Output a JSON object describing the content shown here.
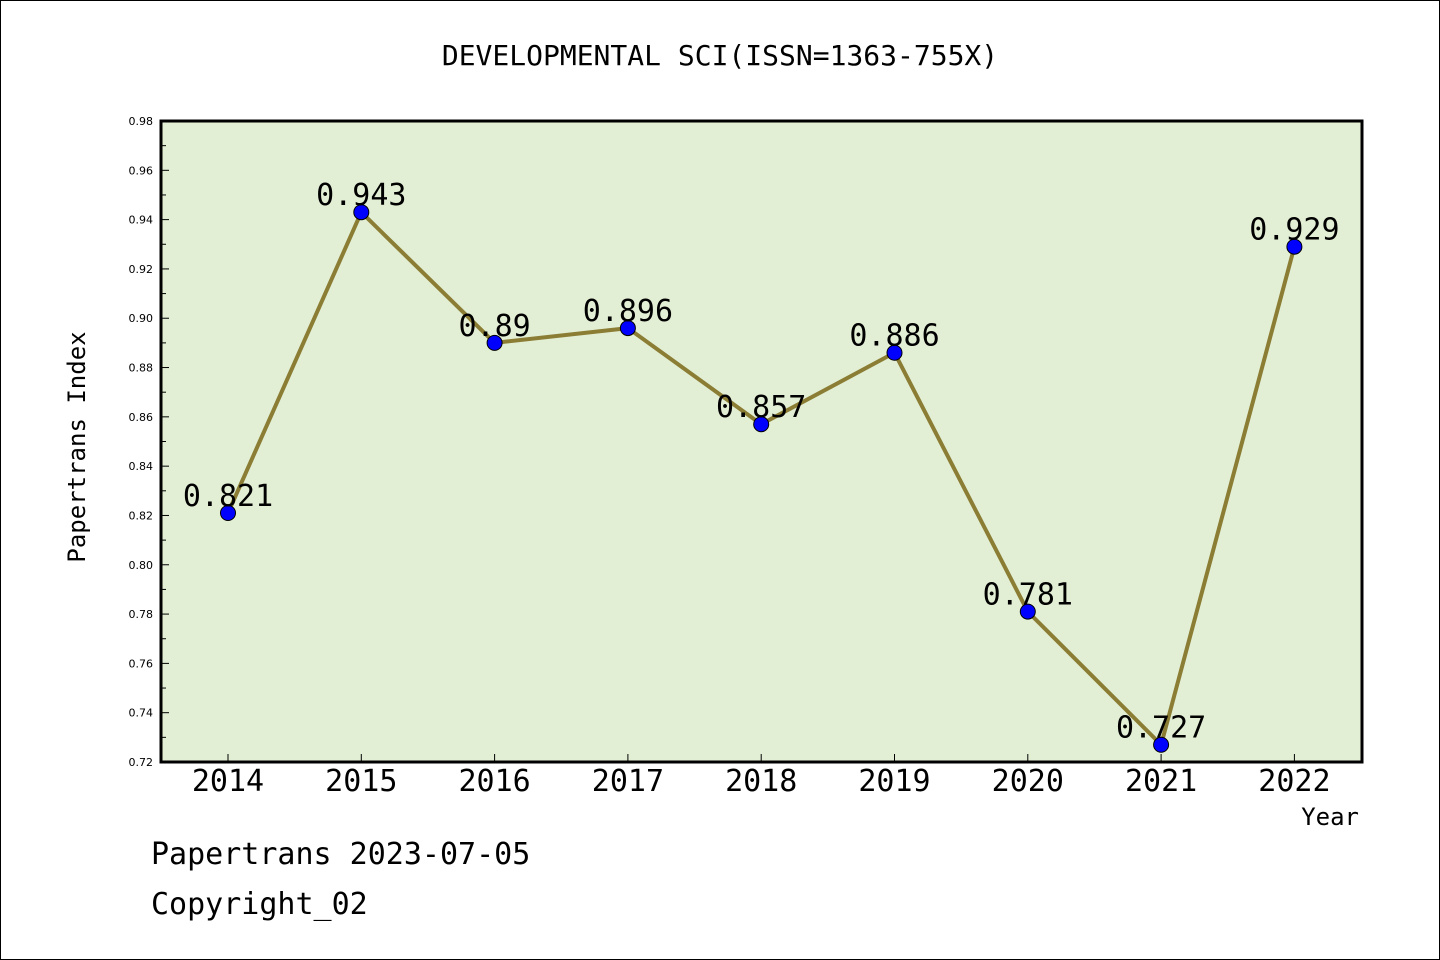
{
  "title": "DEVELOPMENTAL SCI(ISSN=1363-755X)",
  "footer": {
    "date_line": "Papertrans 2023-07-05",
    "copyright_line": "Copyright_02"
  },
  "colors": {
    "plot_background": "#e2efd4",
    "line": "#8b7d34",
    "marker": "#0000ff"
  },
  "chart_data": {
    "type": "line",
    "title": "DEVELOPMENTAL SCI(ISSN=1363-755X)",
    "xlabel": "Year",
    "ylabel": "Papertrans Index",
    "categories": [
      "2014",
      "2015",
      "2016",
      "2017",
      "2018",
      "2019",
      "2020",
      "2021",
      "2022"
    ],
    "values": [
      0.821,
      0.943,
      0.89,
      0.896,
      0.857,
      0.886,
      0.781,
      0.727,
      0.929
    ],
    "data_labels": [
      "0.821",
      "0.943",
      "0.89",
      "0.896",
      "0.857",
      "0.886",
      "0.781",
      "0.727",
      "0.929"
    ],
    "ylim": [
      0.72,
      0.98
    ],
    "yticks": [
      "0.72",
      "0.74",
      "0.76",
      "0.78",
      "0.80",
      "0.82",
      "0.84",
      "0.86",
      "0.88",
      "0.90",
      "0.92",
      "0.94",
      "0.96",
      "0.98"
    ],
    "grid": false,
    "legend": "none"
  }
}
